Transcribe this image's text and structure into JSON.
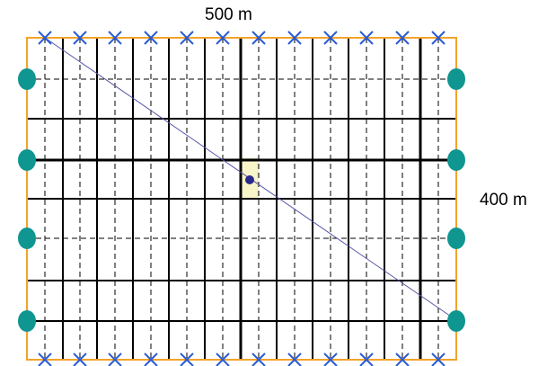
{
  "labels": {
    "width": "500 m",
    "height": "400 m"
  },
  "colors": {
    "boundary": "#f2a32b",
    "grid": "#000000",
    "cross_marker": "#2a5bd7",
    "side_node": "#0f9690",
    "diagonal": "#5656a8",
    "highlight_cell": "#f8f5c8",
    "center_node": "#2a2a8c"
  },
  "icons": {
    "cross_marker": "x-marker-icon",
    "side_node": "circle-node-icon",
    "center_node": "center-dot-icon"
  }
}
